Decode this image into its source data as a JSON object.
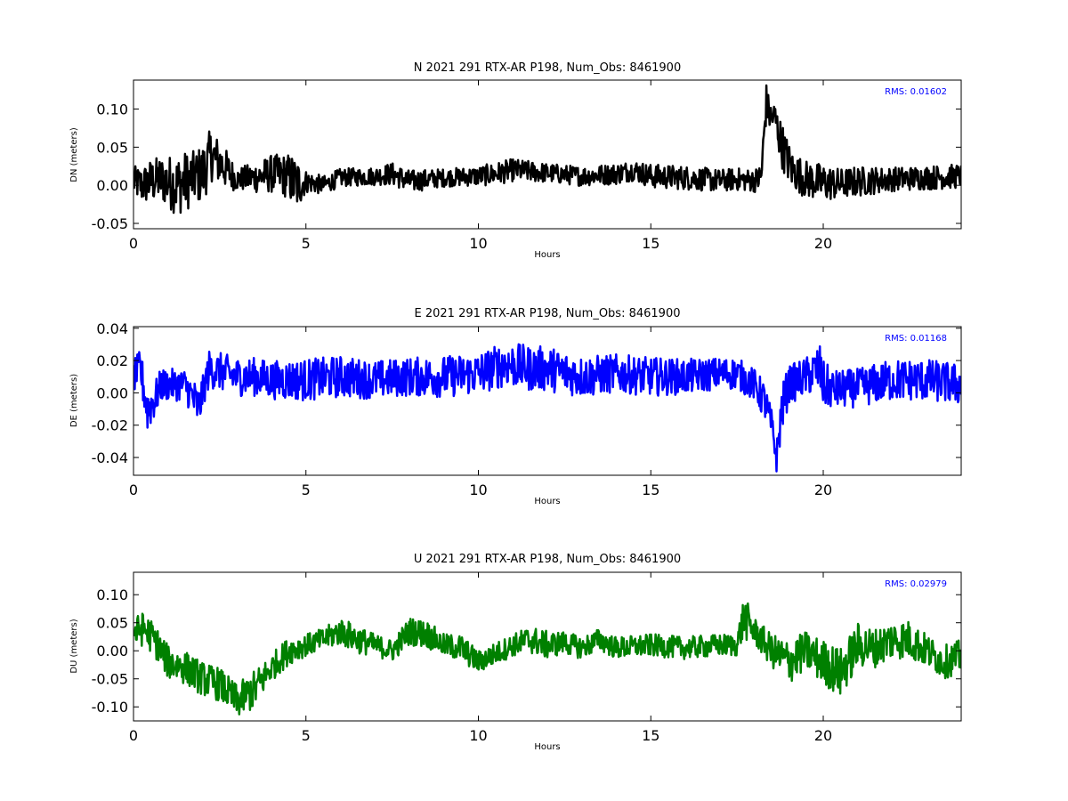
{
  "chart_data": [
    {
      "type": "line",
      "title": "N 2021 291 RTX-AR  P198, Num_Obs: 8461900",
      "xlabel": "Hours",
      "ylabel": "DN (meters)",
      "xlim": [
        0,
        24
      ],
      "ylim": [
        -0.057,
        0.138
      ],
      "xticks": [
        "0",
        "5",
        "10",
        "15",
        "20"
      ],
      "yticks": [
        "-0.05",
        "0.00",
        "0.05",
        "0.10"
      ],
      "annotation": "RMS:  0.01602",
      "annotation_color": "#0000ff",
      "series": [
        {
          "color": "#000000",
          "x": [
            0,
            0.25,
            0.5,
            0.75,
            1,
            1.25,
            1.5,
            1.75,
            2,
            2.25,
            2.5,
            2.75,
            3,
            3.5,
            4,
            4.5,
            4.7,
            5,
            5.5,
            6,
            7,
            7.5,
            8,
            9,
            10,
            10.5,
            11,
            11.5,
            12,
            13,
            14,
            14.5,
            15,
            16,
            17,
            17.5,
            18,
            18.2,
            18.35,
            18.45,
            18.6,
            18.75,
            18.9,
            19.1,
            19.5,
            20,
            20.5,
            21,
            22,
            23,
            24
          ],
          "center": [
            0.005,
            0.0,
            0.005,
            0.008,
            0.005,
            0.0,
            0.005,
            0.01,
            0.015,
            0.04,
            0.03,
            0.018,
            0.008,
            0.01,
            0.015,
            0.012,
            0.0,
            0.005,
            0.0,
            0.01,
            0.012,
            0.015,
            0.005,
            0.01,
            0.012,
            0.015,
            0.02,
            0.018,
            0.016,
            0.012,
            0.015,
            0.02,
            0.012,
            0.01,
            0.006,
            0.008,
            0.006,
            0.01,
            0.11,
            0.09,
            0.09,
            0.06,
            0.04,
            0.02,
            0.008,
            0.003,
            0.002,
            0.005,
            0.008,
            0.01,
            0.012
          ],
          "amp": [
            0.02,
            0.025,
            0.03,
            0.03,
            0.035,
            0.04,
            0.04,
            0.035,
            0.04,
            0.035,
            0.03,
            0.025,
            0.015,
            0.02,
            0.025,
            0.03,
            0.04,
            0.015,
            0.012,
            0.012,
            0.012,
            0.015,
            0.015,
            0.012,
            0.013,
            0.015,
            0.015,
            0.014,
            0.013,
            0.013,
            0.014,
            0.014,
            0.016,
            0.016,
            0.015,
            0.015,
            0.015,
            0.02,
            0.025,
            0.02,
            0.02,
            0.03,
            0.03,
            0.025,
            0.025,
            0.025,
            0.02,
            0.02,
            0.016,
            0.016,
            0.016
          ]
        }
      ]
    },
    {
      "type": "line",
      "title": "E 2021 291 RTX-AR  P198, Num_Obs: 8461900",
      "xlabel": "Hours",
      "ylabel": "DE (meters)",
      "xlim": [
        0,
        24
      ],
      "ylim": [
        -0.051,
        0.041
      ],
      "xticks": [
        "0",
        "5",
        "10",
        "15",
        "20"
      ],
      "yticks": [
        "-0.04",
        "-0.02",
        "0.00",
        "0.02",
        "0.04"
      ],
      "annotation": "RMS:  0.01168",
      "annotation_color": "#0000ff",
      "series": [
        {
          "color": "#0000ff",
          "x": [
            0,
            0.2,
            0.4,
            0.6,
            0.8,
            1,
            1.5,
            1.9,
            2.0,
            2.2,
            3,
            3.5,
            4,
            5,
            6,
            7,
            8,
            9,
            10,
            10.8,
            11.5,
            12,
            13,
            14,
            15,
            16,
            17,
            17.5,
            18,
            18.3,
            18.5,
            18.65,
            18.8,
            19,
            19.5,
            19.9,
            20.0,
            20.3,
            21,
            22,
            23,
            24
          ],
          "center": [
            0.01,
            0.015,
            -0.01,
            -0.005,
            0.005,
            0.005,
            0.005,
            -0.01,
            0.0,
            0.015,
            0.01,
            0.01,
            0.008,
            0.008,
            0.01,
            0.008,
            0.01,
            0.01,
            0.012,
            0.018,
            0.015,
            0.015,
            0.01,
            0.012,
            0.01,
            0.01,
            0.012,
            0.012,
            0.005,
            -0.005,
            -0.02,
            -0.04,
            -0.01,
            0.005,
            0.01,
            0.015,
            0.005,
            0.002,
            0.003,
            0.008,
            0.008,
            0.005
          ],
          "amp": [
            0.01,
            0.012,
            0.015,
            0.012,
            0.01,
            0.01,
            0.01,
            0.015,
            0.01,
            0.012,
            0.012,
            0.012,
            0.012,
            0.013,
            0.013,
            0.012,
            0.012,
            0.013,
            0.013,
            0.014,
            0.014,
            0.014,
            0.013,
            0.012,
            0.012,
            0.011,
            0.01,
            0.01,
            0.01,
            0.012,
            0.01,
            0.01,
            0.015,
            0.012,
            0.012,
            0.015,
            0.015,
            0.012,
            0.012,
            0.013,
            0.013,
            0.013
          ]
        }
      ]
    },
    {
      "type": "line",
      "title": "U 2021 291 RTX-AR  P198, Num_Obs: 8461900",
      "xlabel": "Hours",
      "ylabel": "DU (meters)",
      "xlim": [
        0,
        24
      ],
      "ylim": [
        -0.125,
        0.14
      ],
      "xticks": [
        "0",
        "5",
        "10",
        "15",
        "20"
      ],
      "yticks": [
        "-0.10",
        "-0.05",
        "0.00",
        "0.05",
        "0.10"
      ],
      "annotation": "RMS:  0.02979",
      "annotation_color": "#0000ff",
      "series": [
        {
          "color": "#008000",
          "x": [
            0,
            0.3,
            0.6,
            1,
            1.5,
            2,
            2.5,
            3,
            3.5,
            4,
            4.5,
            5,
            5.5,
            6,
            6.5,
            7,
            7.5,
            8,
            8.5,
            9,
            9.5,
            10,
            10.5,
            11,
            11.5,
            12,
            12.5,
            13,
            13.5,
            14,
            15,
            16,
            17,
            17.5,
            17.7,
            18,
            18.5,
            19,
            19.5,
            20,
            20.5,
            21,
            21.5,
            22,
            22.5,
            23,
            23.5,
            24
          ],
          "center": [
            0.03,
            0.04,
            0.02,
            -0.02,
            -0.03,
            -0.05,
            -0.06,
            -0.09,
            -0.07,
            -0.03,
            0.0,
            0.01,
            0.02,
            0.035,
            0.02,
            0.01,
            0.0,
            0.035,
            0.03,
            0.01,
            0.005,
            -0.02,
            -0.005,
            0.01,
            0.02,
            0.01,
            0.015,
            0.005,
            0.02,
            0.005,
            0.01,
            0.005,
            0.01,
            0.01,
            0.06,
            0.035,
            0.0,
            -0.02,
            0.0,
            -0.02,
            -0.04,
            0.01,
            0.005,
            0.02,
            0.02,
            0.0,
            -0.02,
            -0.01
          ],
          "amp": [
            0.03,
            0.03,
            0.03,
            0.03,
            0.03,
            0.03,
            0.03,
            0.03,
            0.035,
            0.025,
            0.025,
            0.02,
            0.02,
            0.025,
            0.025,
            0.02,
            0.02,
            0.025,
            0.025,
            0.02,
            0.025,
            0.02,
            0.02,
            0.02,
            0.025,
            0.025,
            0.02,
            0.02,
            0.02,
            0.02,
            0.02,
            0.02,
            0.02,
            0.02,
            0.04,
            0.025,
            0.03,
            0.04,
            0.035,
            0.04,
            0.045,
            0.04,
            0.035,
            0.035,
            0.035,
            0.03,
            0.03,
            0.03
          ]
        }
      ]
    }
  ]
}
